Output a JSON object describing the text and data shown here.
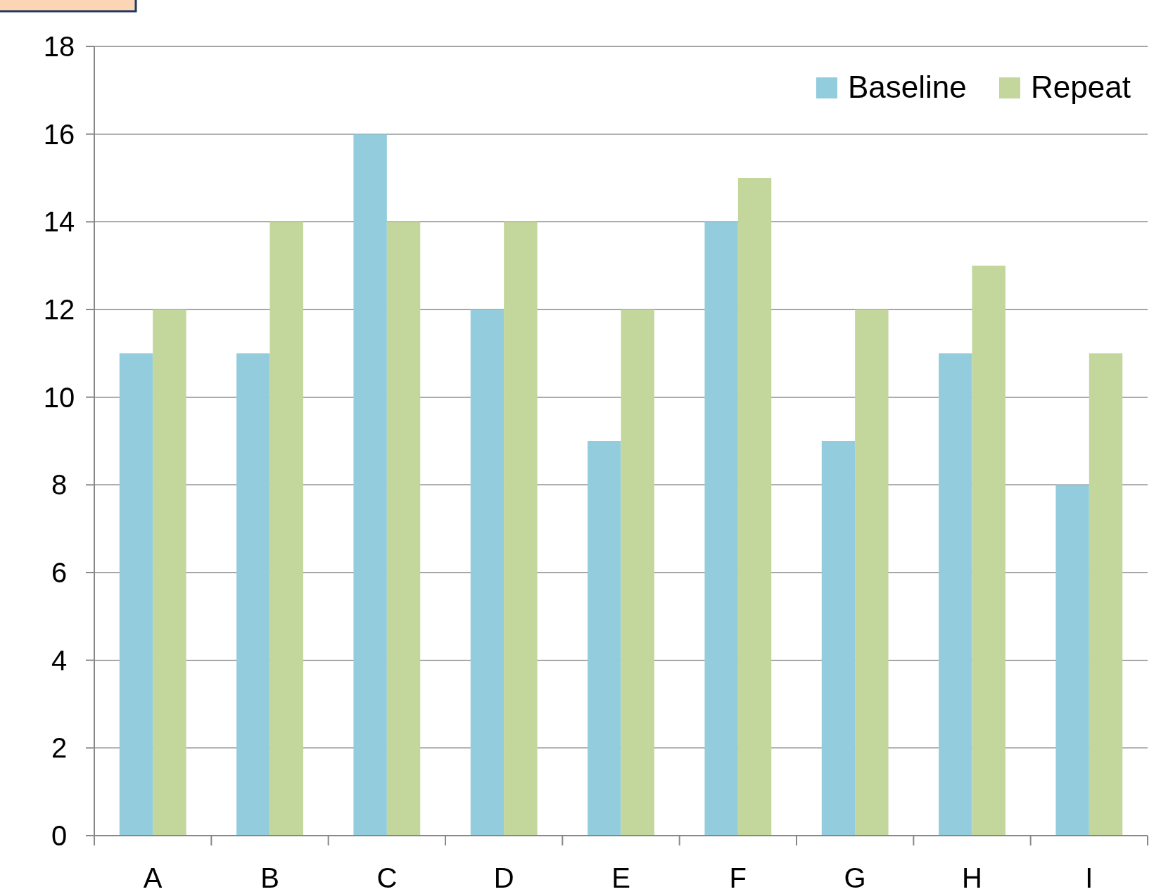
{
  "chart_data": {
    "type": "bar",
    "categories": [
      "A",
      "B",
      "C",
      "D",
      "E",
      "F",
      "G",
      "H",
      "I"
    ],
    "series": [
      {
        "name": "Baseline",
        "color": "#93cddd",
        "values": [
          11,
          11,
          16,
          12,
          9,
          14,
          9,
          11,
          8
        ]
      },
      {
        "name": "Repeat",
        "color": "#c3d69b",
        "values": [
          12,
          14,
          14,
          14,
          12,
          15,
          12,
          13,
          11
        ]
      }
    ],
    "ylim": [
      0,
      18
    ],
    "yticks": [
      0,
      2,
      4,
      6,
      8,
      10,
      12,
      14,
      16,
      18
    ],
    "grid": "y",
    "legend": "top right"
  }
}
